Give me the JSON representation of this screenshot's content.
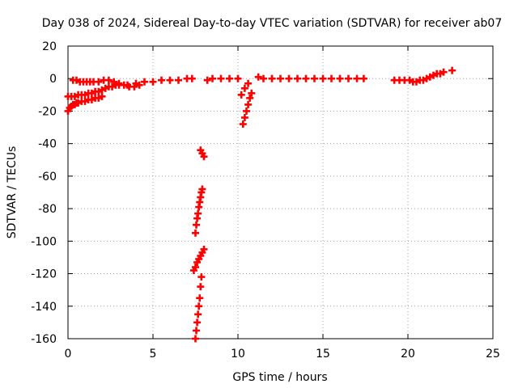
{
  "chart_data": {
    "type": "scatter",
    "title": "Day 038 of 2024, Sidereal Day-to-day VTEC variation (SDTVAR) for receiver ab07",
    "xlabel": "GPS time / hours",
    "ylabel": "SDTVAR / TECUs",
    "xlim": [
      0,
      25
    ],
    "ylim": [
      -160,
      20
    ],
    "xticks": [
      0,
      5,
      10,
      15,
      20,
      25
    ],
    "yticks": [
      20,
      0,
      -20,
      -40,
      -60,
      -80,
      -100,
      -120,
      -140,
      -160
    ],
    "grid": true,
    "marker": "plus",
    "series": [
      {
        "name": "SDTVAR",
        "color": "#ff0000",
        "x": [
          0.0,
          0.1,
          0.2,
          0.3,
          0.4,
          0.5,
          0.6,
          0.8,
          1.0,
          1.2,
          1.4,
          1.6,
          1.8,
          2.0,
          0.0,
          0.2,
          0.4,
          0.6,
          0.8,
          1.0,
          1.2,
          1.4,
          1.6,
          1.8,
          2.0,
          2.2,
          2.4,
          2.6,
          2.8,
          3.0,
          3.5,
          4.0,
          4.5,
          5.0,
          5.5,
          6.0,
          6.5,
          7.0,
          7.3,
          0.3,
          0.5,
          0.7,
          0.9,
          1.1,
          1.3,
          1.5,
          1.8,
          2.1,
          2.4,
          2.7,
          3.0,
          3.3,
          3.6,
          3.9,
          4.2,
          7.8,
          7.9,
          8.0,
          7.5,
          7.55,
          7.6,
          7.65,
          7.7,
          7.75,
          7.8,
          7.85,
          7.9,
          7.4,
          7.5,
          7.6,
          7.7,
          7.8,
          7.9,
          8.0,
          7.5,
          7.55,
          7.6,
          7.65,
          7.7,
          7.75,
          7.8,
          7.85,
          8.2,
          8.5,
          9.0,
          9.5,
          10.0,
          10.3,
          10.4,
          10.5,
          10.6,
          10.7,
          10.8,
          10.2,
          10.4,
          10.6,
          11.2,
          11.5,
          12.0,
          12.5,
          13.0,
          13.5,
          14.0,
          14.5,
          15.0,
          15.5,
          16.0,
          16.5,
          17.0,
          17.4,
          19.2,
          19.5,
          19.8,
          20.1,
          20.3,
          20.5,
          20.7,
          20.9,
          21.1,
          21.3,
          21.5,
          21.7,
          21.9,
          22.1,
          22.6
        ],
        "y": [
          -20,
          -18,
          -17,
          -16,
          -16,
          -15,
          -15,
          -14,
          -14,
          -13,
          -13,
          -12,
          -12,
          -11,
          -11,
          -11,
          -11,
          -10,
          -10,
          -10,
          -9,
          -9,
          -8,
          -8,
          -7,
          -6,
          -5,
          -5,
          -4,
          -4,
          -4,
          -3,
          -2,
          -2,
          -1,
          -1,
          -1,
          0,
          0,
          -1,
          -1,
          -2,
          -2,
          -2,
          -2,
          -2,
          -2,
          -1,
          -1,
          -2,
          -3,
          -4,
          -5,
          -5,
          -4,
          -44,
          -46,
          -48,
          -95,
          -90,
          -86,
          -83,
          -79,
          -76,
          -73,
          -70,
          -68,
          -118,
          -116,
          -113,
          -111,
          -109,
          -107,
          -105,
          -160,
          -155,
          -150,
          -145,
          -140,
          -135,
          -128,
          -122,
          -1,
          0,
          0,
          0,
          0,
          -28,
          -24,
          -20,
          -16,
          -12,
          -9,
          -10,
          -6,
          -3,
          1,
          0,
          0,
          0,
          0,
          0,
          0,
          0,
          0,
          0,
          0,
          0,
          0,
          0,
          -1,
          -1,
          -1,
          -1,
          -2,
          -2,
          -1,
          -1,
          0,
          1,
          2,
          3,
          3,
          4,
          5
        ]
      }
    ]
  }
}
